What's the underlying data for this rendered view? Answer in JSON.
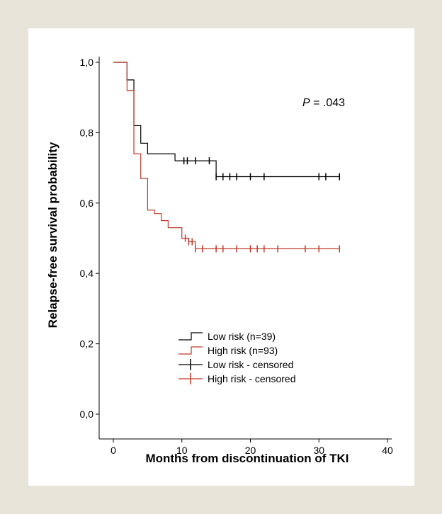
{
  "chart_data": {
    "type": "line",
    "title": "",
    "xlabel": "Months from discontinuation of TKI",
    "ylabel": "Relapse-free survival probability",
    "xlim": [
      0,
      40
    ],
    "ylim": [
      0,
      1
    ],
    "x_ticks": [
      "0",
      "10",
      "20",
      "30",
      "40"
    ],
    "y_ticks": [
      "0,0",
      "0,2",
      "0,4",
      "0,6",
      "0,8",
      "1,0"
    ],
    "annotation": {
      "italic": "P",
      "rest": " = .043"
    },
    "series": [
      {
        "name": "Low risk (n=39)",
        "color": "#000000",
        "steps": [
          [
            0,
            1.0
          ],
          [
            2,
            0.95
          ],
          [
            3,
            0.82
          ],
          [
            4,
            0.77
          ],
          [
            5,
            0.74
          ],
          [
            9,
            0.72
          ],
          [
            15,
            0.675
          ],
          [
            33,
            0.675
          ]
        ],
        "censored_name": "Low risk - censored",
        "censored_x": [
          10.3,
          10.8,
          12,
          14,
          15,
          16,
          17,
          18,
          20,
          22,
          30,
          31,
          33
        ]
      },
      {
        "name": "High risk (n=93)",
        "color": "#c0392b",
        "steps": [
          [
            0,
            1.0
          ],
          [
            2,
            0.92
          ],
          [
            3,
            0.74
          ],
          [
            4,
            0.67
          ],
          [
            5,
            0.58
          ],
          [
            6,
            0.57
          ],
          [
            7,
            0.55
          ],
          [
            8,
            0.53
          ],
          [
            10,
            0.5
          ],
          [
            11,
            0.49
          ],
          [
            12,
            0.47
          ],
          [
            33,
            0.47
          ]
        ],
        "censored_name": "High risk - censored",
        "censored_x": [
          10.5,
          11,
          11.5,
          12,
          13,
          15,
          16,
          18,
          20,
          21,
          22,
          24,
          28,
          30,
          33
        ]
      }
    ],
    "legend_position": "bottom-center"
  }
}
